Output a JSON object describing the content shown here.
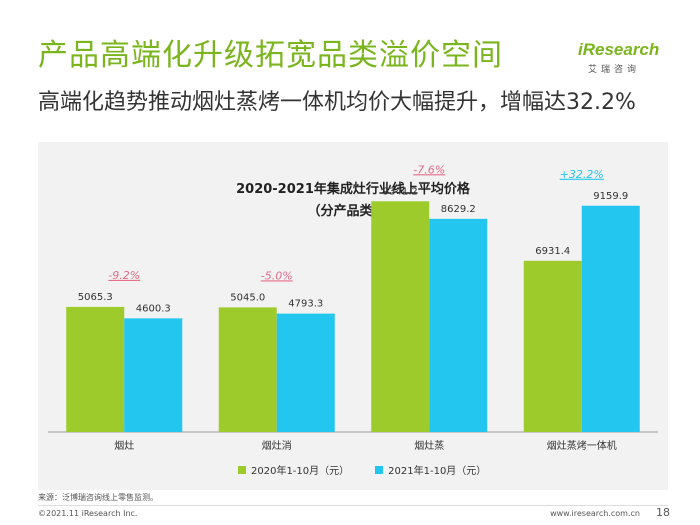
{
  "slide": {
    "title": "产品高端化升级拓宽品类溢价空间",
    "subtitle": "高端化趋势推动烟灶蒸烤一体机均价大幅提升，增幅达32.2%"
  },
  "logo": {
    "word": "iResearch",
    "cn": "艾瑞咨询"
  },
  "colors": {
    "title": "#7ab51d",
    "series_2020": "#9dcb2c",
    "series_2021": "#22c6ee",
    "change_label": "#e56b8a",
    "change_label_positive": "#22c6ee"
  },
  "chart_data": {
    "type": "bar",
    "title": "2020-2021年集成灶行业线上平均价格",
    "subtitle": "（分产品类型）",
    "categories": [
      "烟灶",
      "烟灶消",
      "烟灶蒸",
      "烟灶蒸烤一体机"
    ],
    "series": [
      {
        "name": "2020年1-10月（元）",
        "values": [
          5065.3,
          5045.0,
          9341.2,
          6931.4
        ]
      },
      {
        "name": "2021年1-10月（元）",
        "values": [
          4600.3,
          4793.3,
          8629.2,
          9159.9
        ]
      }
    ],
    "value_labels": [
      [
        "5065.3",
        "5045.0",
        "9341.2",
        "6931.4"
      ],
      [
        "4600.3",
        "4793.3",
        "8629.2",
        "9159.9"
      ]
    ],
    "changes": [
      "-9.2%",
      "-5.0%",
      "-7.6%",
      "+32.2%"
    ],
    "ylim": [
      0,
      10000
    ],
    "legend_position": "bottom",
    "grid": false
  },
  "footer": {
    "source": "来源：泛博瑞咨询线上零售监测。",
    "copyright": "©2021.11 iResearch Inc.",
    "site": "www.iresearch.com.cn",
    "page": "18"
  }
}
